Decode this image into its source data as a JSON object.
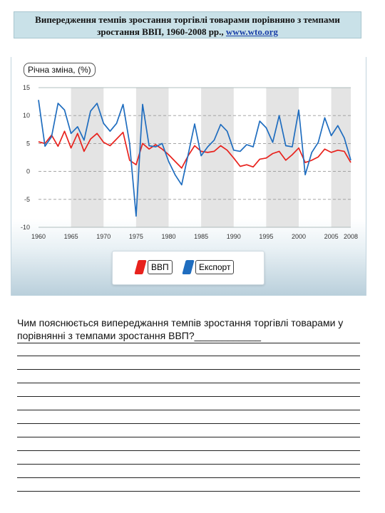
{
  "header": {
    "title_text": "Випередження темпів зростання торгівлі товарами порівняно з темпами зростання ВВП, 1960-2008 рр., ",
    "source_link": "www.wto.org"
  },
  "chart_data": {
    "type": "line",
    "ylabel": "Річна зміна, (%)",
    "xlim": [
      1960,
      2008
    ],
    "ylim": [
      -10,
      15
    ],
    "x_ticks": [
      1960,
      1965,
      1970,
      1975,
      1980,
      1985,
      1990,
      1995,
      2000,
      2005,
      2008
    ],
    "y_ticks": [
      15,
      10,
      5,
      0,
      -5,
      -10
    ],
    "grid": true,
    "legend_position": "bottom-center",
    "x": [
      1960,
      1961,
      1962,
      1963,
      1964,
      1965,
      1966,
      1967,
      1968,
      1969,
      1970,
      1971,
      1972,
      1973,
      1974,
      1975,
      1976,
      1977,
      1978,
      1979,
      1980,
      1981,
      1982,
      1983,
      1984,
      1985,
      1986,
      1987,
      1988,
      1989,
      1990,
      1991,
      1992,
      1993,
      1994,
      1995,
      1996,
      1997,
      1998,
      1999,
      2000,
      2001,
      2002,
      2003,
      2004,
      2005,
      2006,
      2007,
      2008
    ],
    "series": [
      {
        "name": "ВВП",
        "color": "#e8221d",
        "values": [
          5.3,
          5.0,
          6.5,
          4.5,
          7.2,
          4.2,
          6.8,
          3.6,
          5.8,
          6.8,
          5.2,
          4.6,
          5.8,
          7.0,
          2.0,
          1.2,
          5.0,
          4.0,
          4.8,
          4.0,
          3.0,
          1.8,
          0.6,
          2.8,
          4.6,
          3.6,
          3.4,
          3.6,
          4.6,
          3.8,
          2.4,
          0.9,
          1.2,
          0.8,
          2.2,
          2.4,
          3.2,
          3.6,
          2.0,
          3.0,
          4.2,
          1.6,
          2.0,
          2.6,
          4.0,
          3.4,
          3.8,
          3.6,
          1.6
        ]
      },
      {
        "name": "Експорт",
        "color": "#1f6dbf",
        "values": [
          12.8,
          4.5,
          6.2,
          12.2,
          11.0,
          6.8,
          8.0,
          5.6,
          10.8,
          12.2,
          8.6,
          7.2,
          8.6,
          12.0,
          5.0,
          -8.0,
          12.0,
          4.6,
          4.4,
          5.0,
          1.8,
          -0.6,
          -2.4,
          3.0,
          8.5,
          2.8,
          4.4,
          5.6,
          8.4,
          7.2,
          3.8,
          3.6,
          4.8,
          4.4,
          9.0,
          7.8,
          5.2,
          10.0,
          4.6,
          4.4,
          11.0,
          -0.6,
          3.4,
          5.2,
          9.6,
          6.4,
          8.2,
          6.0,
          2.0
        ]
      }
    ]
  },
  "question": {
    "text": "Чим пояснюється випереджання темпів зростання торгівлі товарами у порівнянні з темпами зростання ВВП?____________"
  },
  "colors": {
    "title_background": "#c9e1e8",
    "gdp": "#e8221d",
    "exports": "#1f6dbf",
    "band": "#e4e4e4"
  }
}
